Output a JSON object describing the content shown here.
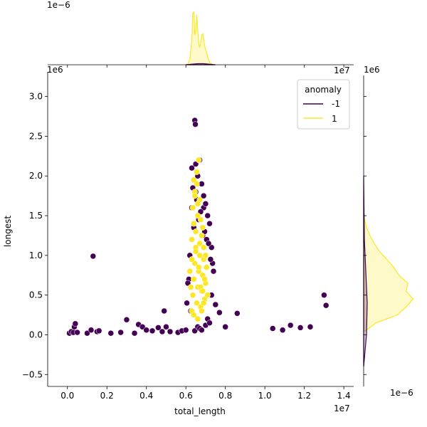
{
  "chart_data": {
    "type": "scatter",
    "xlabel": "total_length",
    "ylabel": "longest",
    "x_scale_label": "1e7",
    "y_scale_label": "1e6",
    "top_marginal_scale_label": "1e−6",
    "right_marginal_scale_label": "1e−6",
    "xlim": [
      -1000000,
      14500000
    ],
    "ylim": [
      -650000,
      3400000
    ],
    "x_tick_labels": [
      "0.0",
      "0.2",
      "0.4",
      "0.6",
      "0.8",
      "1.0",
      "1.2",
      "1.4"
    ],
    "y_tick_labels": [
      "−0.5",
      "0.0",
      "0.5",
      "1.0",
      "1.5",
      "2.0",
      "2.5",
      "3.0"
    ],
    "grid": false,
    "legend": {
      "title": "anomaly",
      "placement": "top-right",
      "entries": [
        {
          "label": "-1",
          "color": "#440154"
        },
        {
          "label": "1",
          "color": "#fde725"
        }
      ]
    },
    "series": [
      {
        "name": "-1",
        "color": "#440154",
        "x": [
          100000,
          200000,
          300000,
          350000,
          400000,
          500000,
          1000000,
          1200000,
          1300000,
          1500000,
          1600000,
          2200000,
          2700000,
          3000000,
          3400000,
          3600000,
          3800000,
          4000000,
          4300000,
          4600000,
          4800000,
          4900000,
          5000000,
          5200000,
          5600000,
          5800000,
          6000000,
          7500000,
          7700000,
          8000000,
          8600000,
          10400000,
          10900000,
          11300000,
          11800000,
          12300000,
          13000000,
          13100000,
          6450000,
          6480000,
          6300000,
          6350000,
          6500000,
          6600000,
          6700000,
          6800000,
          6900000,
          7000000,
          7100000,
          7200000,
          7300000,
          7350000,
          7400000,
          6200000,
          6150000,
          6100000,
          6050000,
          6400000,
          6550000,
          6650000,
          6750000,
          6850000,
          6950000,
          7050000,
          7150000,
          7250000,
          6250000,
          6450000,
          6600000,
          6700000,
          6800000,
          7000000,
          7100000,
          7200000,
          6500000,
          6900000,
          7300000,
          6300000
        ],
        "y": [
          20000,
          40000,
          30000,
          100000,
          140000,
          30000,
          20000,
          60000,
          990000,
          40000,
          50000,
          20000,
          30000,
          190000,
          20000,
          130000,
          100000,
          60000,
          50000,
          90000,
          40000,
          300000,
          100000,
          40000,
          30000,
          50000,
          60000,
          380000,
          280000,
          100000,
          270000,
          80000,
          60000,
          120000,
          90000,
          100000,
          500000,
          370000,
          2700000,
          2650000,
          2100000,
          1850000,
          2150000,
          2000000,
          2200000,
          1900000,
          1600000,
          1650000,
          1500000,
          1400000,
          1100000,
          900000,
          800000,
          1000000,
          700000,
          650000,
          400000,
          1350000,
          1700000,
          1450000,
          1550000,
          1250000,
          1300000,
          1200000,
          1150000,
          950000,
          300000,
          50000,
          100000,
          80000,
          60000,
          120000,
          200000,
          150000,
          1800000,
          1750000,
          500000,
          1600000
        ]
      },
      {
        "name": "1",
        "color": "#fde725",
        "x": [
          6300000,
          6350000,
          6400000,
          6450000,
          6500000,
          6550000,
          6600000,
          6650000,
          6700000,
          6750000,
          6800000,
          6850000,
          6900000,
          6950000,
          7000000,
          7050000,
          7100000,
          6250000,
          6200000,
          6300000,
          6400000,
          6500000,
          6600000,
          6700000,
          6800000,
          6900000,
          7000000,
          6350000,
          6450000,
          6550000,
          6650000,
          6750000,
          6850000,
          6950000,
          6400000,
          6600000,
          6800000,
          6500000,
          6700000,
          6300000,
          6900000,
          6550000,
          6750000,
          6450000,
          6650000,
          6850000,
          6600000,
          6400000
        ],
        "y": [
          300000,
          500000,
          700000,
          900000,
          1100000,
          400000,
          600000,
          800000,
          1000000,
          350000,
          550000,
          750000,
          950000,
          450000,
          650000,
          850000,
          500000,
          600000,
          800000,
          1200000,
          1400000,
          1300000,
          1500000,
          1700000,
          1250000,
          1100000,
          1000000,
          1600000,
          1800000,
          1900000,
          2200000,
          1450000,
          1350000,
          700000,
          250000,
          200000,
          300000,
          1050000,
          1150000,
          950000,
          400000,
          2050000,
          600000,
          1750000,
          850000,
          550000,
          1650000,
          1950000
        ]
      }
    ],
    "marginal_kde_x": {
      "series": [
        {
          "name": "1",
          "x": [
            6000000,
            6100000,
            6200000,
            6300000,
            6350000,
            6400000,
            6450000,
            6500000,
            6550000,
            6600000,
            6650000,
            6700000,
            6750000,
            6800000,
            6850000,
            6900000,
            6950000,
            7000000,
            7050000,
            7100000,
            7150000,
            7200000,
            7300000,
            7400000
          ],
          "density": [
            0.0,
            0.03,
            0.2,
            0.9,
            1.9,
            1.95,
            1.1,
            1.25,
            1.85,
            1.3,
            0.8,
            0.65,
            0.8,
            1.1,
            1.15,
            0.95,
            0.7,
            0.55,
            0.45,
            0.3,
            0.18,
            0.1,
            0.03,
            0.0
          ]
        },
        {
          "name": "-1",
          "x": [
            6000000,
            6300000,
            6600000,
            6900000,
            7200000,
            7500000
          ],
          "density": [
            0.0,
            0.02,
            0.04,
            0.04,
            0.02,
            0.0
          ]
        }
      ]
    },
    "marginal_kde_y": {
      "series": [
        {
          "name": "1",
          "y": [
            50000,
            150000,
            250000,
            350000,
            450000,
            550000,
            650000,
            750000,
            850000,
            950000,
            1050000,
            1150000,
            1250000,
            1350000,
            1450000,
            1550000
          ],
          "density": [
            0.05,
            0.35,
            0.95,
            1.2,
            1.4,
            1.2,
            1.25,
            1.0,
            0.85,
            0.65,
            0.45,
            0.3,
            0.18,
            0.08,
            0.03,
            0.0
          ]
        },
        {
          "name": "-1",
          "y": [
            -400000,
            0,
            400000,
            800000,
            1200000,
            2000000
          ],
          "density": [
            0.0,
            0.08,
            0.1,
            0.06,
            0.02,
            0.0
          ]
        }
      ]
    }
  }
}
